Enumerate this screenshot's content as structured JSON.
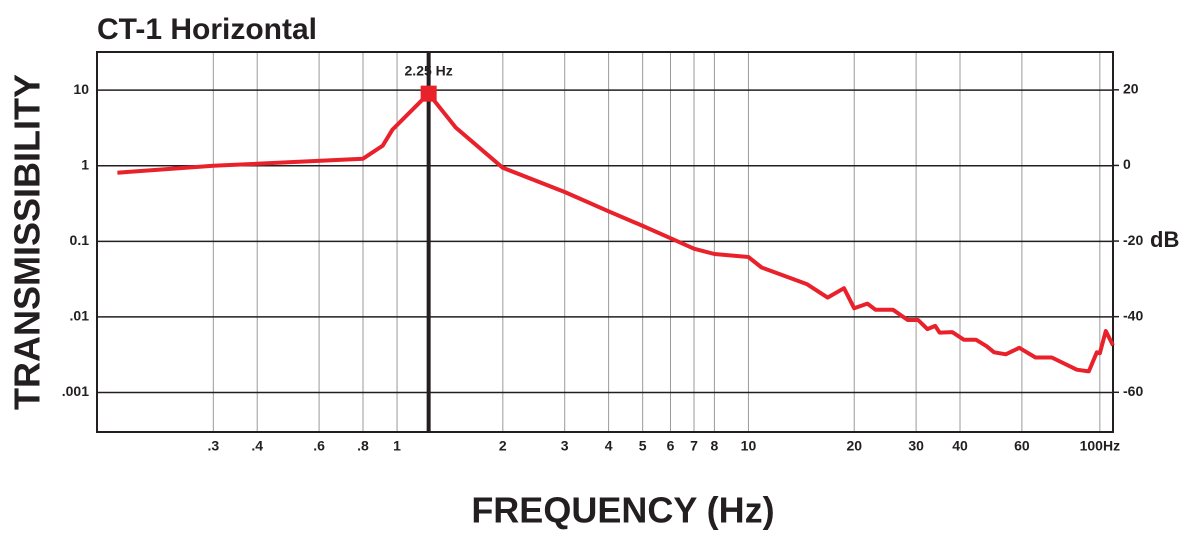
{
  "chart_data": {
    "type": "line",
    "title": "CT-1 Horizontal",
    "xlabel": "FREQUENCY (Hz)",
    "ylabel": "TRANSMISSIBILITY",
    "y2label": "dB",
    "annotation": "2.25 Hz",
    "xscale": "log",
    "yscale": "log",
    "grid": true,
    "color": "#e8212b",
    "x": [
      0.16,
      0.3,
      0.8,
      0.91,
      0.97,
      1.23,
      1.47,
      2,
      3,
      4,
      5,
      6,
      7,
      8,
      10,
      10.9,
      14.7,
      16.8,
      18.7,
      20,
      21.8,
      23,
      25.8,
      28.4,
      30.4,
      32.3,
      34,
      35,
      38,
      41,
      44.4,
      47.6,
      50,
      54,
      59,
      65.6,
      73,
      86,
      93,
      98,
      100,
      104,
      109
    ],
    "values": [
      0.81,
      1.0,
      1.24,
      1.84,
      3.0,
      9.0,
      3.2,
      0.94,
      0.45,
      0.25,
      0.16,
      0.11,
      0.08,
      0.068,
      0.062,
      0.045,
      0.027,
      0.018,
      0.024,
      0.013,
      0.015,
      0.0124,
      0.0124,
      0.0091,
      0.0091,
      0.0069,
      0.0076,
      0.0062,
      0.0063,
      0.005,
      0.005,
      0.0041,
      0.0034,
      0.0032,
      0.0039,
      0.0029,
      0.0029,
      0.002,
      0.0019,
      0.0034,
      0.0033,
      0.0065,
      0.0042
    ],
    "xlim": [
      0.14,
      109
    ],
    "xticks": [
      {
        "value": 0.3,
        "label": ".3"
      },
      {
        "value": 0.4,
        "label": ".4"
      },
      {
        "value": 0.6,
        "label": ".6"
      },
      {
        "value": 0.8,
        "label": ".8"
      },
      1,
      2,
      3,
      4,
      5,
      6,
      7,
      8,
      10,
      20,
      30,
      40,
      60,
      {
        "value": 100,
        "label": "100Hz"
      }
    ],
    "ylim": [
      0.0003,
      32
    ],
    "yticks": [
      10,
      1,
      0.1,
      {
        "value": 0.01,
        "label": ".01"
      },
      {
        "value": 0.001,
        "label": ".001"
      }
    ],
    "y2lim": [
      -70.5,
      30
    ],
    "y2ticks": [
      20,
      0,
      -20,
      -40,
      -60
    ]
  }
}
